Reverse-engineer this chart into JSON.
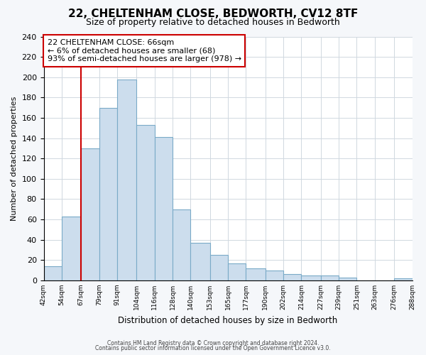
{
  "title": "22, CHELTENHAM CLOSE, BEDWORTH, CV12 8TF",
  "subtitle": "Size of property relative to detached houses in Bedworth",
  "xlabel": "Distribution of detached houses by size in Bedworth",
  "ylabel": "Number of detached properties",
  "bin_edges": [
    42,
    54,
    67,
    79,
    91,
    104,
    116,
    128,
    140,
    153,
    165,
    177,
    190,
    202,
    214,
    227,
    239,
    251,
    263,
    276,
    288
  ],
  "bar_heights": [
    14,
    63,
    130,
    170,
    198,
    153,
    141,
    70,
    37,
    25,
    17,
    12,
    10,
    6,
    5,
    5,
    3,
    0,
    0,
    2
  ],
  "bar_color": "#ccdded",
  "bar_edge_color": "#7aaac8",
  "property_line_x": 67,
  "property_line_color": "#cc0000",
  "annotation_title": "22 CHELTENHAM CLOSE: 66sqm",
  "annotation_line1": "← 6% of detached houses are smaller (68)",
  "annotation_line2": "93% of semi-detached houses are larger (978) →",
  "ylim": [
    0,
    240
  ],
  "yticks": [
    0,
    20,
    40,
    60,
    80,
    100,
    120,
    140,
    160,
    180,
    200,
    220,
    240
  ],
  "tick_labels": [
    "42sqm",
    "54sqm",
    "67sqm",
    "79sqm",
    "91sqm",
    "104sqm",
    "116sqm",
    "128sqm",
    "140sqm",
    "153sqm",
    "165sqm",
    "177sqm",
    "190sqm",
    "202sqm",
    "214sqm",
    "227sqm",
    "239sqm",
    "251sqm",
    "263sqm",
    "276sqm",
    "288sqm"
  ],
  "footer1": "Contains HM Land Registry data © Crown copyright and database right 2024.",
  "footer2": "Contains public sector information licensed under the Open Government Licence v3.0.",
  "background_color": "#f5f7fa",
  "plot_bg_color": "#ffffff",
  "grid_color": "#d0d8e0"
}
